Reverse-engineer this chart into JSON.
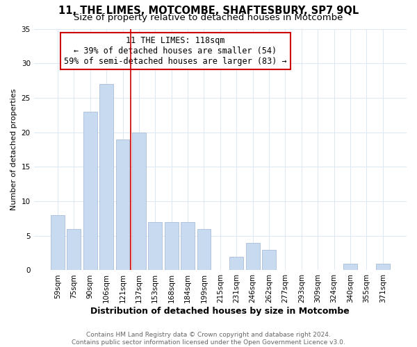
{
  "title": "11, THE LIMES, MOTCOMBE, SHAFTESBURY, SP7 9QL",
  "subtitle": "Size of property relative to detached houses in Motcombe",
  "xlabel": "Distribution of detached houses by size in Motcombe",
  "ylabel": "Number of detached properties",
  "bar_labels": [
    "59sqm",
    "75sqm",
    "90sqm",
    "106sqm",
    "121sqm",
    "137sqm",
    "153sqm",
    "168sqm",
    "184sqm",
    "199sqm",
    "215sqm",
    "231sqm",
    "246sqm",
    "262sqm",
    "277sqm",
    "293sqm",
    "309sqm",
    "324sqm",
    "340sqm",
    "355sqm",
    "371sqm"
  ],
  "bar_values": [
    8,
    6,
    23,
    27,
    19,
    20,
    7,
    7,
    7,
    6,
    0,
    2,
    4,
    3,
    0,
    0,
    0,
    0,
    1,
    0,
    1
  ],
  "bar_color": "#c8daf0",
  "bar_edge_color": "#aabdd8",
  "reference_line_x": 4.5,
  "reference_line_color": "#cc0000",
  "ylim": [
    0,
    35
  ],
  "yticks": [
    0,
    5,
    10,
    15,
    20,
    25,
    30,
    35
  ],
  "annotation_title": "11 THE LIMES: 118sqm",
  "annotation_line1": "← 39% of detached houses are smaller (54)",
  "annotation_line2": "59% of semi-detached houses are larger (83) →",
  "annotation_box_color": "#ffffff",
  "annotation_box_edge": "#cc0000",
  "footer_line1": "Contains HM Land Registry data © Crown copyright and database right 2024.",
  "footer_line2": "Contains public sector information licensed under the Open Government Licence v3.0.",
  "title_fontsize": 10.5,
  "subtitle_fontsize": 9.5,
  "xlabel_fontsize": 9,
  "ylabel_fontsize": 8,
  "tick_fontsize": 7.5,
  "annotation_fontsize": 8.5,
  "footer_fontsize": 6.5,
  "grid_color": "#dce8f5",
  "background_color": "#ffffff"
}
